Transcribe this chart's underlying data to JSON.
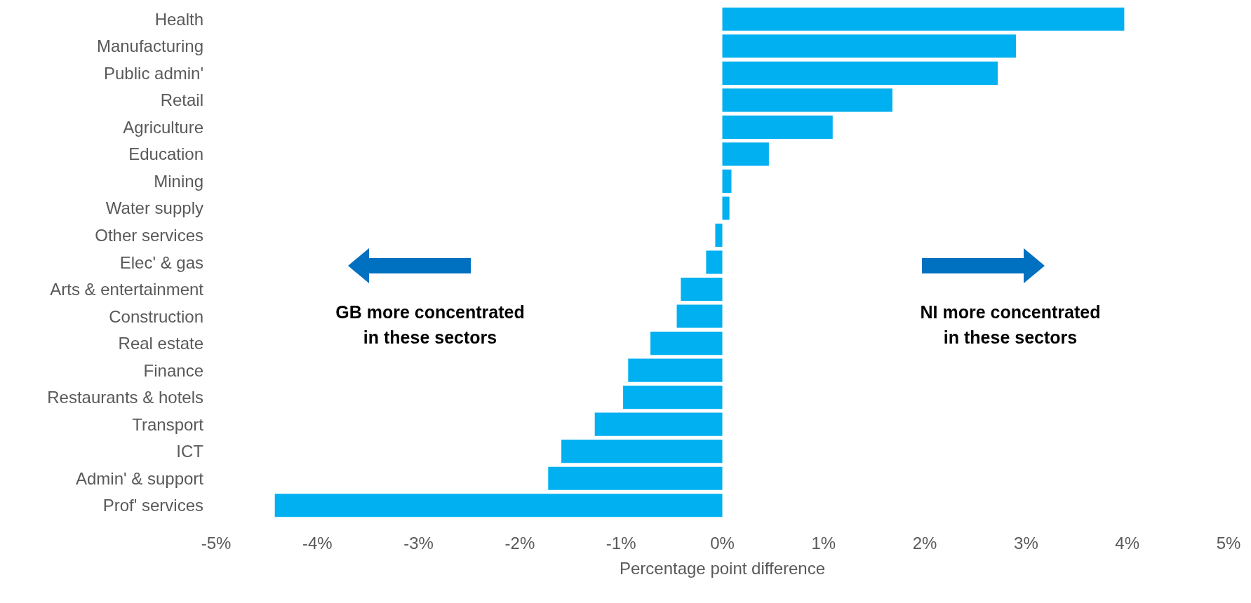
{
  "chart_data": {
    "type": "bar",
    "orientation": "horizontal",
    "xlabel": "Percentage point difference",
    "categories": [
      "Health",
      "Manufacturing",
      "Public admin'",
      "Retail",
      "Agriculture",
      "Education",
      "Mining",
      "Water supply",
      "Other services",
      "Elec' & gas",
      "Arts & entertainment",
      "Construction",
      "Real estate",
      "Finance",
      "Restaurants & hotels",
      "Transport",
      "ICT",
      "Admin' & support",
      "Prof' services"
    ],
    "values": [
      3.97,
      2.9,
      2.72,
      1.68,
      1.09,
      0.46,
      0.09,
      0.07,
      -0.07,
      -0.16,
      -0.41,
      -0.45,
      -0.71,
      -0.93,
      -0.98,
      -1.26,
      -1.59,
      -1.72,
      -4.42
    ],
    "color": "#00b0f0",
    "xlim": [
      -5,
      5
    ],
    "xticks": [
      {
        "value": -5,
        "label": "-5%"
      },
      {
        "value": -4,
        "label": "-4%"
      },
      {
        "value": -3,
        "label": "-3%"
      },
      {
        "value": -2,
        "label": "-2%"
      },
      {
        "value": -1,
        "label": "-1%"
      },
      {
        "value": 0,
        "label": "0%"
      },
      {
        "value": 1,
        "label": "1%"
      },
      {
        "value": 2,
        "label": "2%"
      },
      {
        "value": 3,
        "label": "3%"
      },
      {
        "value": 4,
        "label": "4%"
      },
      {
        "value": 5,
        "label": "5%"
      }
    ],
    "annotations": [
      "GB more concentrated\nin these sectors",
      "NI more concentrated\nin these sectors"
    ],
    "grid": false
  }
}
